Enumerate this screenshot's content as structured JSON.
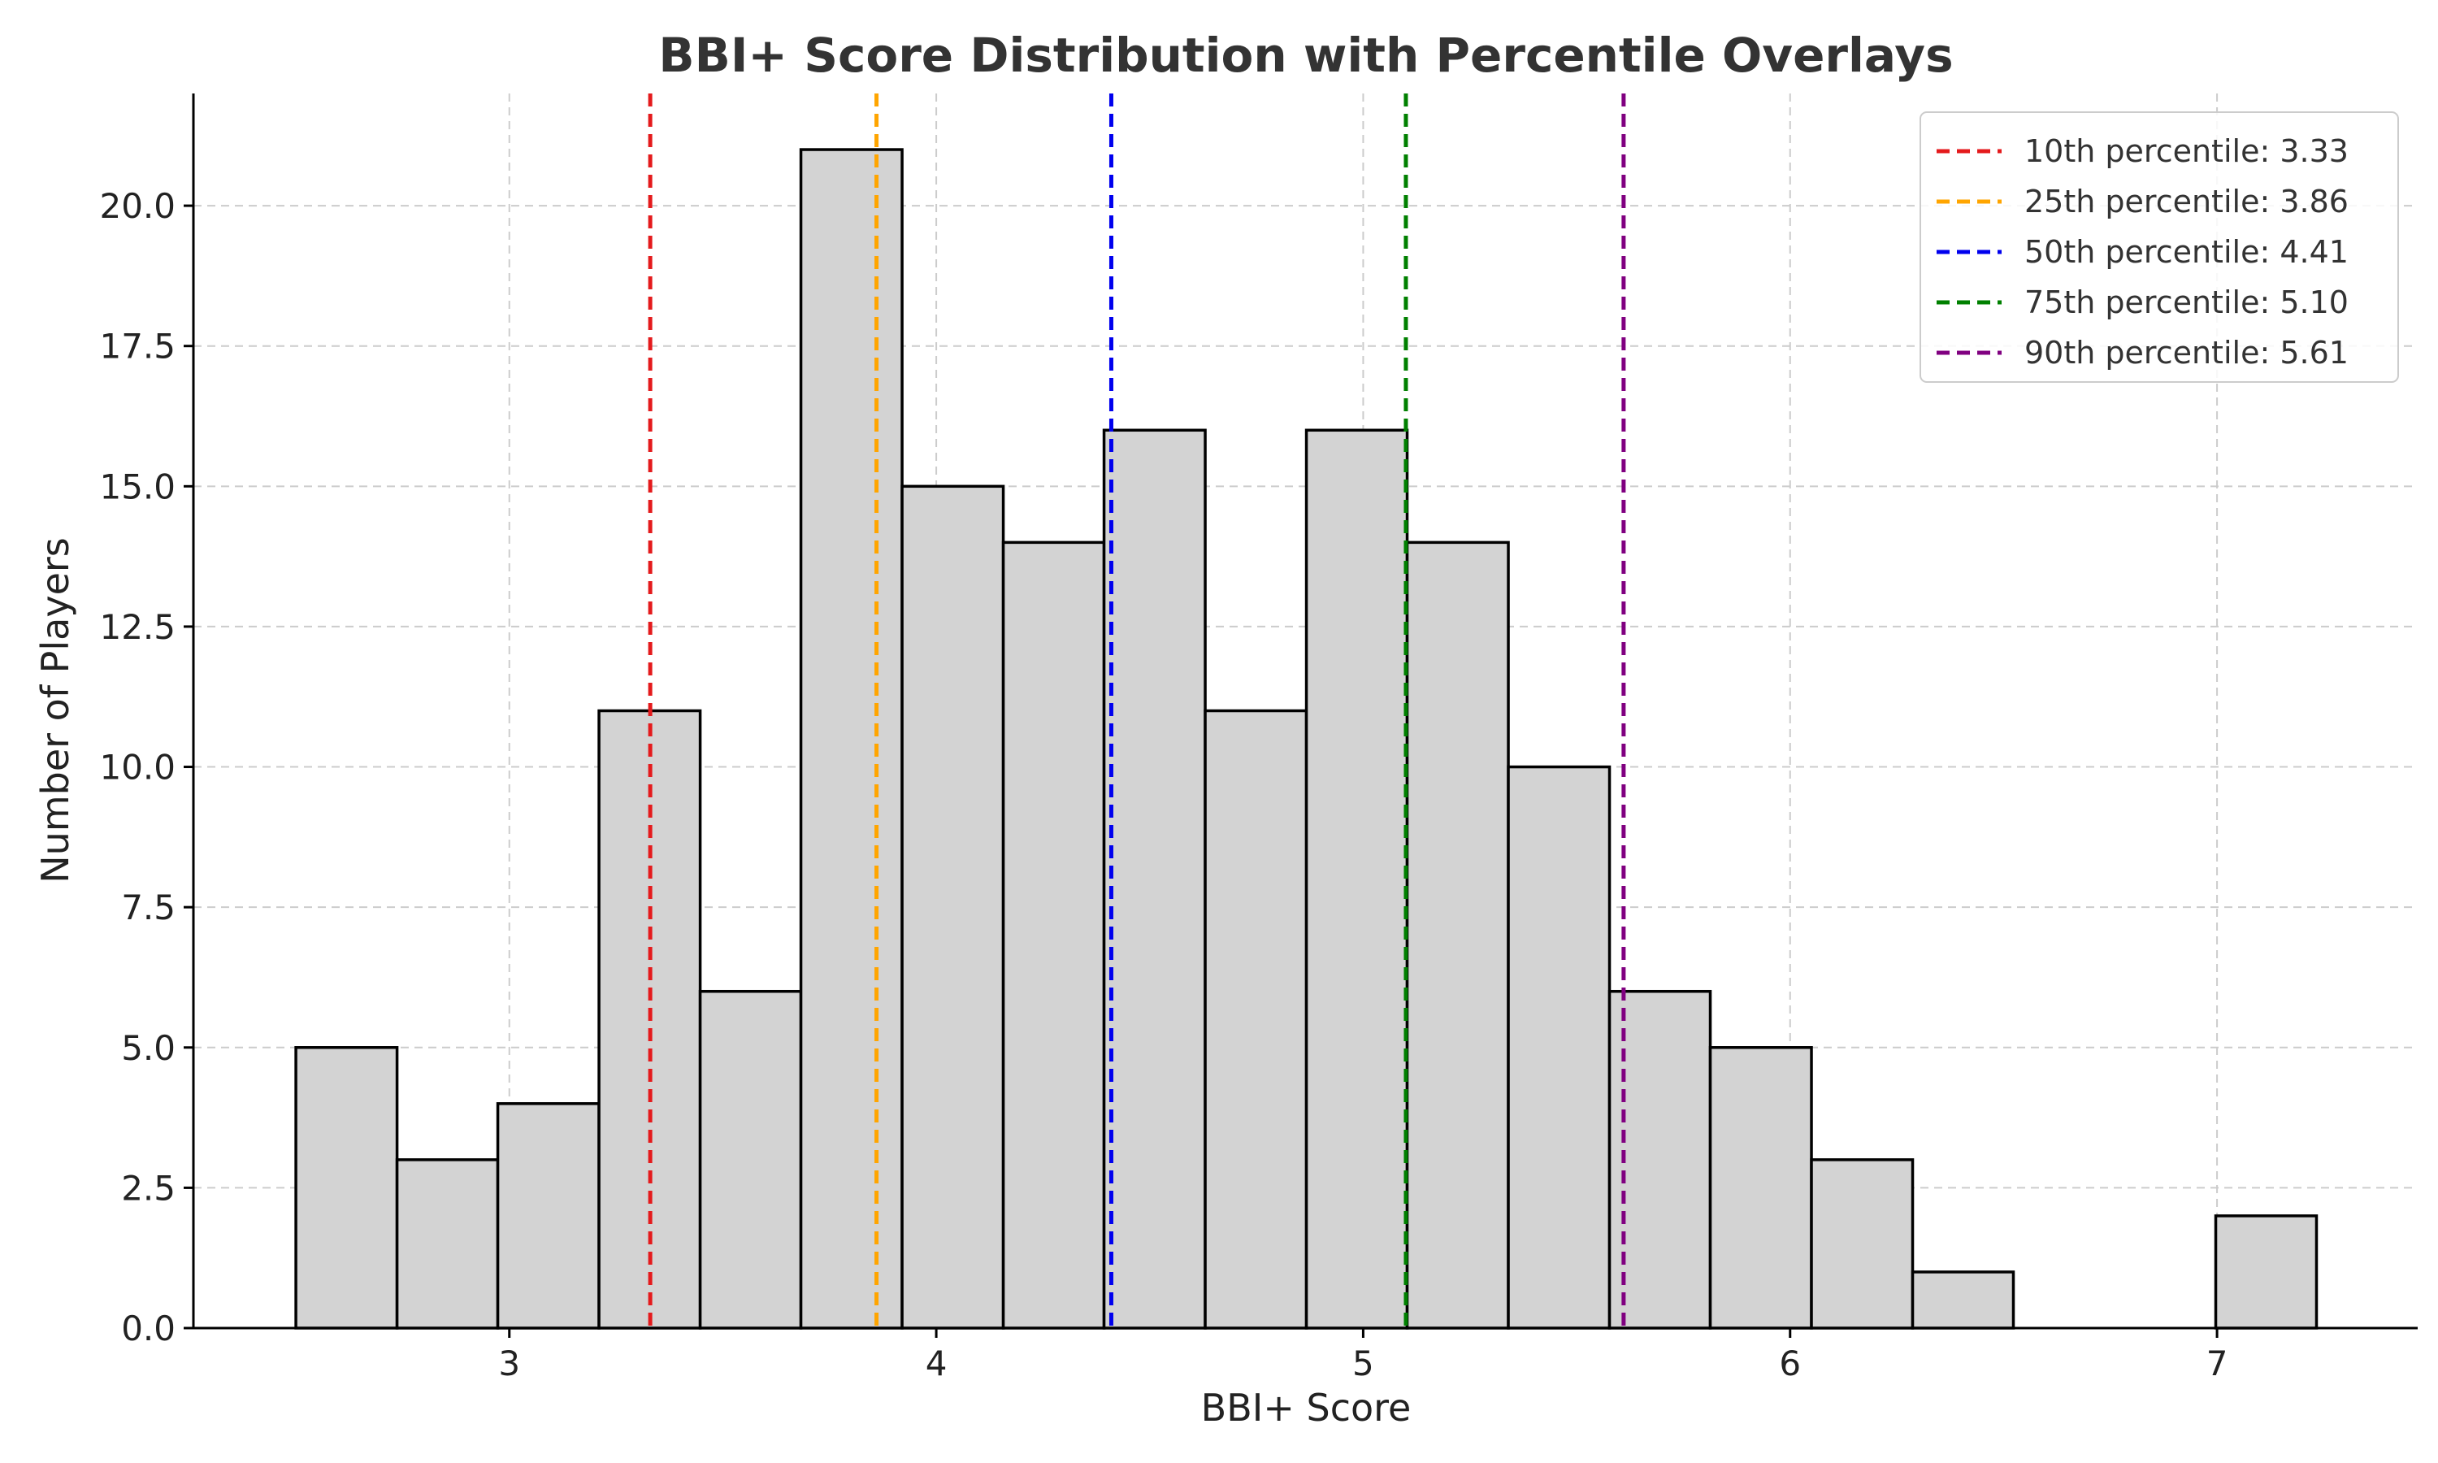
{
  "chart_data": {
    "type": "bar",
    "title": "BBI+ Score Distribution with Percentile Overlays",
    "xlabel": "BBI+ Score",
    "ylabel": "Number of Players",
    "xlim": [
      2.26,
      7.47
    ],
    "ylim": [
      0,
      22
    ],
    "x_ticks": [
      3,
      4,
      5,
      6,
      7
    ],
    "y_ticks": [
      "0.0",
      "2.5",
      "5.0",
      "7.5",
      "10.0",
      "12.5",
      "15.0",
      "17.5",
      "20.0"
    ],
    "grid": true,
    "legend_position": "top-right",
    "bins": [
      {
        "x0": 2.5,
        "x1": 2.737,
        "count": 5
      },
      {
        "x0": 2.737,
        "x1": 2.973,
        "count": 3
      },
      {
        "x0": 2.973,
        "x1": 3.21,
        "count": 4
      },
      {
        "x0": 3.21,
        "x1": 3.447,
        "count": 11
      },
      {
        "x0": 3.447,
        "x1": 3.683,
        "count": 6
      },
      {
        "x0": 3.683,
        "x1": 3.92,
        "count": 21
      },
      {
        "x0": 3.92,
        "x1": 4.157,
        "count": 15
      },
      {
        "x0": 4.157,
        "x1": 4.393,
        "count": 14
      },
      {
        "x0": 4.393,
        "x1": 4.63,
        "count": 16
      },
      {
        "x0": 4.63,
        "x1": 4.867,
        "count": 11
      },
      {
        "x0": 4.867,
        "x1": 5.103,
        "count": 16
      },
      {
        "x0": 5.103,
        "x1": 5.34,
        "count": 14
      },
      {
        "x0": 5.34,
        "x1": 5.577,
        "count": 10
      },
      {
        "x0": 5.577,
        "x1": 5.813,
        "count": 6
      },
      {
        "x0": 5.813,
        "x1": 6.05,
        "count": 5
      },
      {
        "x0": 6.05,
        "x1": 6.287,
        "count": 3
      },
      {
        "x0": 6.287,
        "x1": 6.523,
        "count": 1
      },
      {
        "x0": 6.523,
        "x1": 6.76,
        "count": 0
      },
      {
        "x0": 6.76,
        "x1": 6.997,
        "count": 0
      },
      {
        "x0": 6.997,
        "x1": 7.233,
        "count": 2
      }
    ],
    "percentiles": [
      {
        "label": "10th percentile: 3.33",
        "value": 3.33,
        "color": "#e41a1c"
      },
      {
        "label": "25th percentile: 3.86",
        "value": 3.86,
        "color": "#ffa500"
      },
      {
        "label": "50th percentile: 4.41",
        "value": 4.41,
        "color": "#0000ee"
      },
      {
        "label": "75th percentile: 5.10",
        "value": 5.1,
        "color": "#008000"
      },
      {
        "label": "90th percentile: 5.61",
        "value": 5.61,
        "color": "#800080"
      }
    ]
  }
}
